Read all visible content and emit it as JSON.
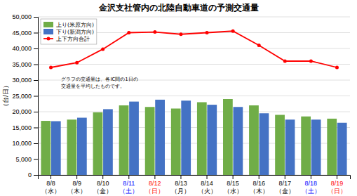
{
  "chart_data": {
    "type": "bar",
    "title": "金沢支社管内の北陸自動車道の予測交通量",
    "ylabel": "（台/日）",
    "categories": [
      "8/8\n（水）",
      "8/9\n（木）",
      "8/10\n（金）",
      "8/11\n（土）",
      "8/12\n（日）",
      "8/13\n（月）",
      "8/14\n（火）",
      "8/15\n（水）",
      "8/16\n（木）",
      "8/17\n（金）",
      "8/18\n（土）",
      "8/19\n（日）"
    ],
    "category_colors": [
      "black",
      "black",
      "black",
      "blue",
      "red",
      "black",
      "black",
      "black",
      "black",
      "black",
      "blue",
      "red"
    ],
    "series": [
      {
        "name": "上り(米原方向)",
        "type": "bar",
        "color": "#70AD47",
        "values": [
          17100,
          17500,
          19800,
          22000,
          21500,
          21000,
          23000,
          24000,
          22000,
          19000,
          18500,
          17800
        ]
      },
      {
        "name": "下り(新潟方向)",
        "type": "bar",
        "color": "#4472C4",
        "values": [
          17000,
          18100,
          20800,
          23200,
          23800,
          23500,
          22200,
          21500,
          19500,
          17500,
          17500,
          16500
        ]
      },
      {
        "name": "上下方向合計",
        "type": "line",
        "color": "#FF0000",
        "marker": "circle",
        "values": [
          34000,
          35500,
          39800,
          45000,
          45200,
          44500,
          45000,
          45500,
          41000,
          36000,
          36000,
          34000
        ]
      }
    ],
    "ylim": [
      0,
      50000
    ],
    "yticks": [
      0,
      {
        "value": 5000,
        "label": "5,000"
      },
      {
        "value": 10000,
        "label": "10,000"
      },
      {
        "value": 15000,
        "label": "15,000"
      },
      {
        "value": 20000,
        "label": "20,000"
      },
      {
        "value": 25000,
        "label": "25,000"
      },
      {
        "value": 30000,
        "label": "30,000"
      },
      {
        "value": 35000,
        "label": "35,000"
      },
      {
        "value": 40000,
        "label": "40,000"
      },
      {
        "value": 45000,
        "label": "45,000"
      },
      {
        "value": 50000,
        "label": "50,000"
      }
    ],
    "grid": true,
    "legend": "upper left",
    "annotations": [
      "グラフの交通量は、各IC間の1日の\n交通量を平均したものです。"
    ]
  }
}
